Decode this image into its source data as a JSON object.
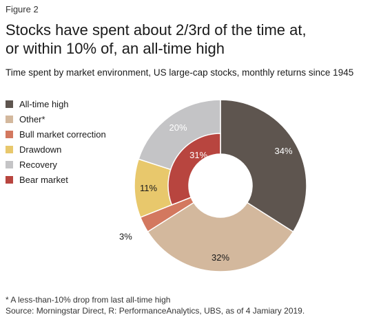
{
  "figure_label": "Figure 2",
  "title_lines": [
    "Stocks have spent about 2/3rd of the time at,",
    "or within 10% of, an all-time high"
  ],
  "subtitle": "Time spent by market environment, US large-cap stocks, monthly returns since 1945",
  "footnote": "* A less-than-10% drop from last all-time high",
  "source": "Source: Morningstar Direct, R: PerformanceAnalytics, UBS, as of 4 Jamiary 2019.",
  "chart_data": {
    "type": "pie",
    "variant": "donut",
    "legend_position": "left",
    "legend": [
      {
        "label": "All-time high",
        "color": "#5e554f"
      },
      {
        "label": "Other*",
        "color": "#d3b89d"
      },
      {
        "label": "Bull market correction",
        "color": "#d3785f"
      },
      {
        "label": "Drawdown",
        "color": "#e8c86c"
      },
      {
        "label": "Recovery",
        "color": "#c4c4c6"
      },
      {
        "label": "Bear market",
        "color": "#b8453f"
      }
    ],
    "rings": [
      {
        "name": "outer",
        "slices": [
          {
            "category": "All-time high",
            "value": 34,
            "label": "34%",
            "color": "#5e554f",
            "label_color": "#ffffff"
          },
          {
            "category": "Other*",
            "value": 32,
            "label": "32%",
            "color": "#d3b89d",
            "label_color": "#1a1a1a"
          },
          {
            "category": "Bull market correction",
            "value": 3,
            "label": "3%",
            "color": "#d3785f",
            "label_color": "#1a1a1a",
            "label_outside": true
          },
          {
            "category": "Drawdown",
            "value": 11,
            "label": "11%",
            "color": "#e8c86c",
            "label_color": "#1a1a1a"
          },
          {
            "category": "Recovery",
            "value": 20,
            "label": "20%",
            "color": "#c4c4c6",
            "label_color": "#ffffff"
          }
        ]
      },
      {
        "name": "inner",
        "slices": [
          {
            "category": "Bear market",
            "value": 31,
            "label": "31%",
            "color": "#b8453f",
            "label_color": "#ffffff",
            "parent_categories": [
              "Drawdown",
              "Recovery"
            ]
          }
        ]
      }
    ]
  }
}
